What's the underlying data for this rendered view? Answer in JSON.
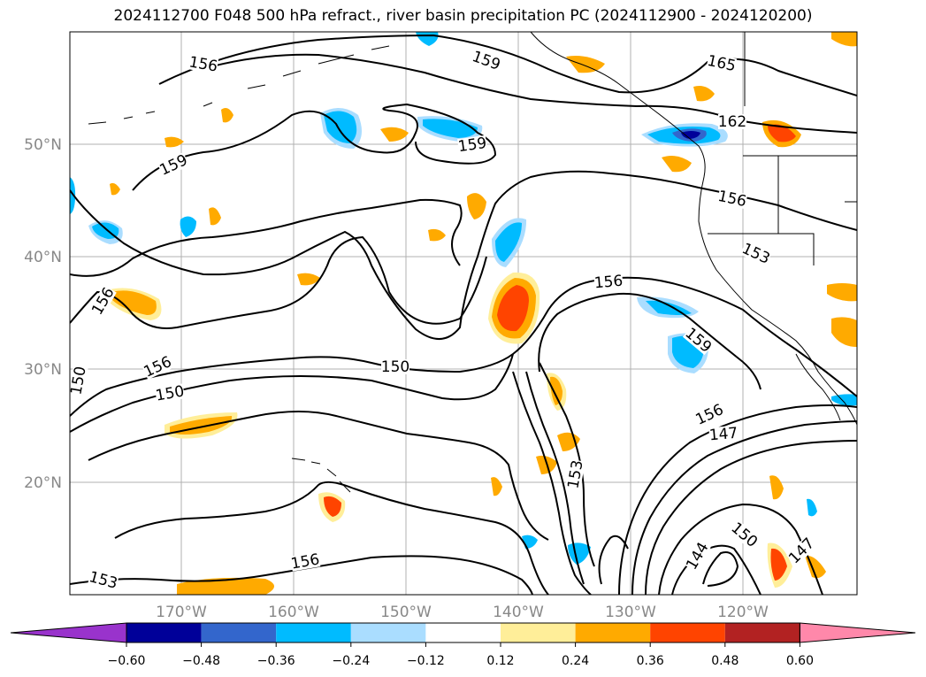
{
  "title": "2024112700 F048 500 hPa refract., river basin precipitation PC (2024112900 - 2024120200)",
  "map": {
    "lon_ticks": [
      "170°W",
      "160°W",
      "150°W",
      "140°W",
      "130°W",
      "120°W"
    ],
    "lat_ticks": [
      "50°N",
      "40°N",
      "30°N",
      "20°N"
    ],
    "grid": true
  },
  "contour_labels": [
    "156",
    "159",
    "165",
    "162",
    "159",
    "159",
    "156",
    "153",
    "156",
    "159",
    "156",
    "150",
    "150",
    "156",
    "150",
    "156",
    "147",
    "153",
    "150",
    "144",
    "147",
    "156",
    "153"
  ],
  "colorbar": {
    "ticks": [
      "−0.60",
      "−0.48",
      "−0.36",
      "−0.24",
      "−0.12",
      "0.12",
      "0.24",
      "0.36",
      "0.48",
      "0.60"
    ],
    "colors": [
      "#9933cc",
      "#000099",
      "#3366cc",
      "#00bbff",
      "#aaddff",
      "#ffffff",
      "#ffee99",
      "#ffaa00",
      "#ff4400",
      "#b22222",
      "#ff88aa"
    ]
  }
}
